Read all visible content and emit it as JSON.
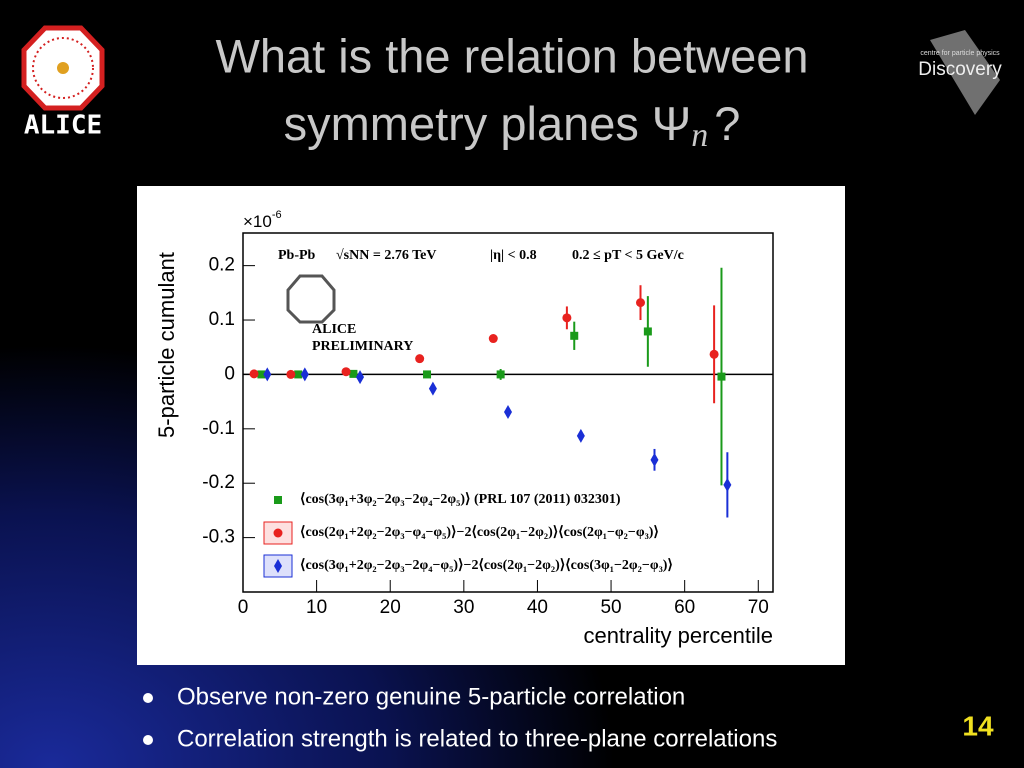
{
  "slide": {
    "title_lines": [
      "What is the relation between",
      "symmetry planes Ψ"
    ],
    "title_subscript": "n",
    "title_end": "?",
    "logo_left": "ALICE",
    "logo_right": "Discovery",
    "logo_right_sub": "centre for particle physics",
    "bullets": [
      "Observe non-zero genuine 5-particle correlation",
      "Correlation strength is related to three-plane correlations"
    ],
    "page_number": "14"
  },
  "chart_data": {
    "type": "scatter",
    "xlabel": "centrality percentile",
    "ylabel": "5-particle cumulant",
    "y_multiplier": "×10",
    "y_multiplier_exp": "-6",
    "xlim": [
      0,
      72
    ],
    "ylim": [
      -0.4,
      0.26
    ],
    "xticks": [
      0,
      10,
      20,
      30,
      40,
      50,
      60,
      70
    ],
    "yticks": [
      0.2,
      0.1,
      0,
      -0.1,
      -0.2,
      -0.3
    ],
    "hline": 0,
    "annotations": [
      "Pb-Pb",
      "√sNN = 2.76 TeV",
      "|η| < 0.8",
      "0.2  ≤ pT < 5 GeV/c",
      "ALICE",
      "PRELIMINARY"
    ],
    "series": [
      {
        "name": "⟨cos(3φ₁+3φ₂−2φ₃−2φ₄−2φ₅)⟩ (PRL 107 (2011) 032301)",
        "color": "#1a9a1a",
        "marker": "square",
        "x": [
          2.5,
          7.5,
          15,
          25,
          35,
          45,
          55,
          65
        ],
        "values": [
          0,
          0,
          0.001,
          0,
          0,
          0.071,
          0.079,
          -0.004
        ],
        "errors": [
          0.002,
          0.002,
          0.002,
          0.003,
          0.01,
          0.026,
          0.065,
          0.2
        ]
      },
      {
        "name": "⟨cos(2φ₁+2φ₂−2φ₃−φ₄−φ₅)⟩−2⟨cos(2φ₁−2φ₂)⟩⟨cos(2φ₁−φ₂−φ₃)⟩",
        "color": "#e8221f",
        "marker": "circle",
        "x": [
          1.5,
          6.5,
          14,
          24,
          34,
          44,
          54,
          64
        ],
        "values": [
          0.001,
          0,
          0.005,
          0.029,
          0.066,
          0.104,
          0.132,
          0.037
        ],
        "errors": [
          0.002,
          0.002,
          0.002,
          0.003,
          0.004,
          0.021,
          0.032,
          0.09
        ]
      },
      {
        "name": "⟨cos(3φ₁+2φ₂−2φ₃−2φ₄−φ₅)⟩−2⟨cos(2φ₁−2φ₂)⟩⟨cos(3φ₁−2φ₂−φ₃)⟩",
        "color": "#1a2fd6",
        "marker": "diamond",
        "x": [
          3.3,
          8.4,
          15.9,
          25.8,
          36,
          45.9,
          55.9,
          65.8
        ],
        "values": [
          0,
          0,
          -0.005,
          -0.026,
          -0.069,
          -0.113,
          -0.157,
          -0.203
        ],
        "errors": [
          0.002,
          0.002,
          0.003,
          0.004,
          0.005,
          0.006,
          0.02,
          0.06
        ]
      }
    ]
  }
}
